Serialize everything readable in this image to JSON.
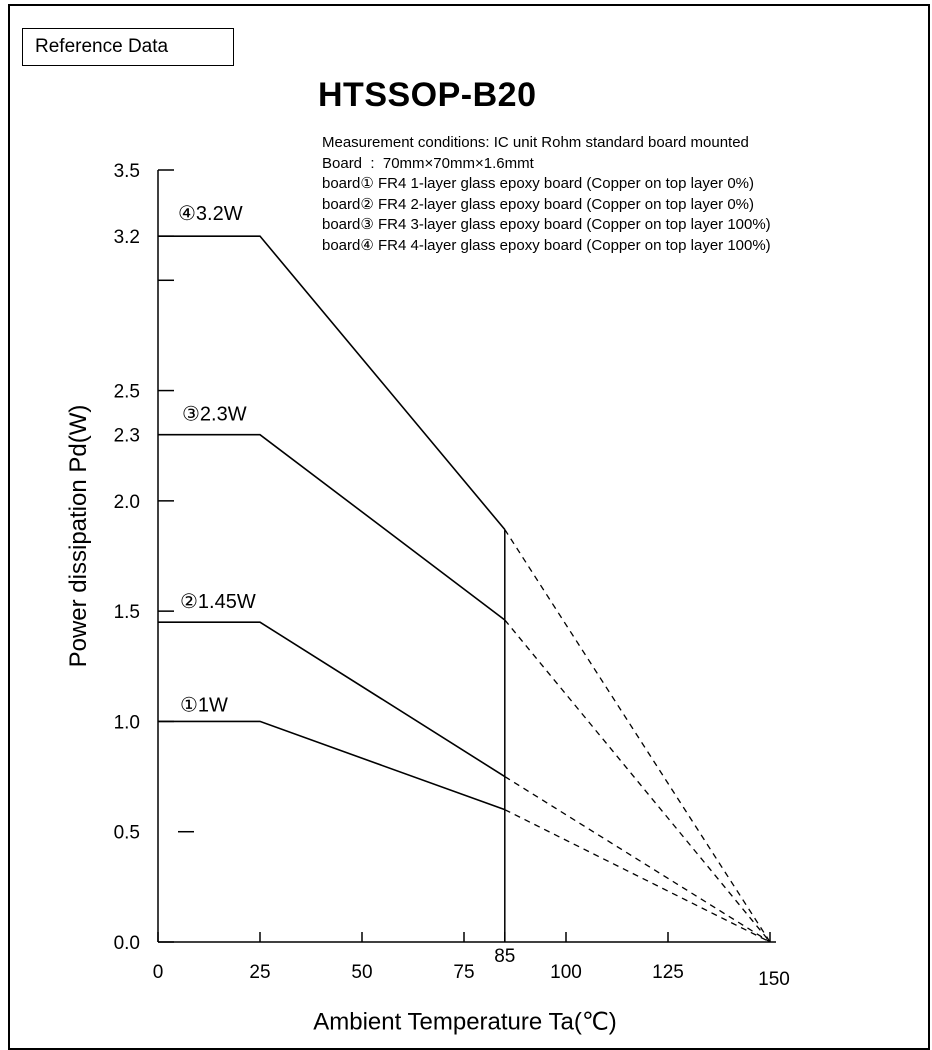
{
  "reference_label": "Reference Data",
  "chart_data": {
    "type": "line",
    "title": "HTSSOP-B20",
    "conditions": [
      "Measurement conditions: IC unit Rohm standard board mounted",
      "Board  :  70mm×70mm×1.6mmt",
      "board① FR4 1-layer glass epoxy board (Copper on top layer 0%)",
      "board② FR4 2-layer glass epoxy board (Copper on top layer 0%)",
      "board③ FR4 3-layer glass epoxy board (Copper on top layer 100%)",
      "board④ FR4 4-layer glass epoxy board (Copper on top layer 100%)"
    ],
    "xlabel": "Ambient Temperature Ta(℃)",
    "ylabel": "Power dissipation Pd(W)",
    "xlim": [
      0,
      150
    ],
    "ylim": [
      0,
      3.5
    ],
    "x_ticks": [
      0,
      25,
      50,
      75,
      100,
      125,
      150
    ],
    "x_minor_ticks": [
      85
    ],
    "x_tick_labels": [
      "0",
      "25",
      "50",
      "75",
      "100",
      "125",
      "150"
    ],
    "x_marker_label": "85",
    "marker_x": 85,
    "y_ticks": [
      0.0,
      0.5,
      1.0,
      1.5,
      2.0,
      2.5,
      3.0,
      3.2,
      3.5
    ],
    "y_tick_labels": [
      {
        "value": 0.0,
        "label": "0.0"
      },
      {
        "value": 0.5,
        "label": "0.5"
      },
      {
        "value": 1.0,
        "label": "1.0"
      },
      {
        "value": 1.5,
        "label": "1.5"
      },
      {
        "value": 2.0,
        "label": "2.0"
      },
      {
        "value": 2.3,
        "label": "2.3"
      },
      {
        "value": 2.5,
        "label": "2.5"
      },
      {
        "value": 3.2,
        "label": "3.2"
      },
      {
        "value": 3.5,
        "label": "3.5"
      }
    ],
    "grid": false,
    "series": [
      {
        "name": "①1W",
        "points": [
          [
            0,
            1.0
          ],
          [
            25,
            1.0
          ],
          [
            85,
            0.6
          ]
        ],
        "dashed_to": [
          150,
          0
        ]
      },
      {
        "name": "②1.45W",
        "points": [
          [
            0,
            1.45
          ],
          [
            25,
            1.45
          ],
          [
            85,
            0.75
          ]
        ],
        "dashed_to": [
          150,
          0
        ]
      },
      {
        "name": "③2.3W",
        "points": [
          [
            0,
            2.3
          ],
          [
            25,
            2.3
          ],
          [
            85,
            1.46
          ]
        ],
        "dashed_to": [
          150,
          0
        ]
      },
      {
        "name": "④3.2W",
        "points": [
          [
            0,
            3.2
          ],
          [
            25,
            3.2
          ],
          [
            85,
            1.87
          ]
        ],
        "dashed_to": [
          150,
          0
        ]
      }
    ]
  }
}
